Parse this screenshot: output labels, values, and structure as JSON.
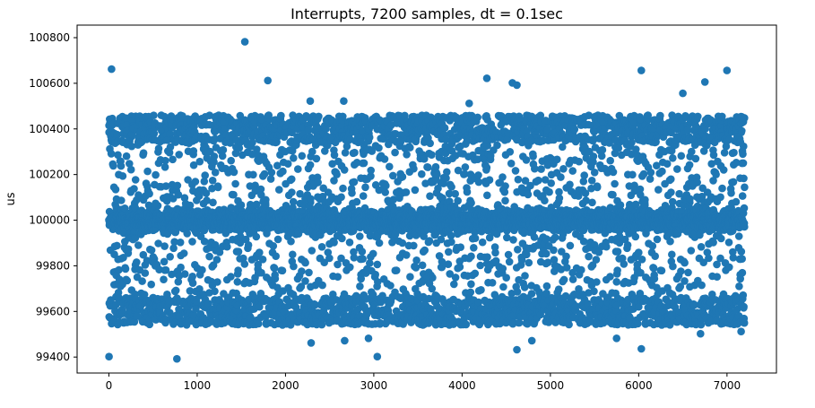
{
  "chart_data": {
    "type": "scatter",
    "title": "Interrupts, 7200 samples, dt = 0.1sec",
    "xlabel": "",
    "ylabel": "us",
    "xlim": [
      -360,
      7560
    ],
    "ylim": [
      99330,
      100855
    ],
    "xticks": [
      0,
      1000,
      2000,
      3000,
      4000,
      5000,
      6000,
      7000
    ],
    "yticks": [
      99400,
      99600,
      99800,
      100000,
      100200,
      100400,
      100600,
      100800
    ],
    "grid": false,
    "marker_color": "#1f77b4",
    "series": [
      {
        "n_samples": 7200,
        "mean": 100000,
        "band_low": 99540,
        "band_high": 100460,
        "outliers": [
          [
            1,
            99402
          ],
          [
            30,
            100662
          ],
          [
            770,
            99392
          ],
          [
            1540,
            100782
          ],
          [
            1800,
            100612
          ],
          [
            2290,
            99462
          ],
          [
            2670,
            99472
          ],
          [
            2940,
            99482
          ],
          [
            3040,
            99402
          ],
          [
            4280,
            100622
          ],
          [
            4570,
            100602
          ],
          [
            4620,
            100592
          ],
          [
            4620,
            99432
          ],
          [
            5750,
            99482
          ],
          [
            6030,
            100656
          ],
          [
            6030,
            99436
          ],
          [
            6500,
            100556
          ],
          [
            6700,
            99502
          ],
          [
            6750,
            100606
          ],
          [
            7000,
            100656
          ],
          [
            4790,
            99472
          ],
          [
            7160,
            99512
          ],
          [
            2280,
            100522
          ],
          [
            2660,
            100522
          ],
          [
            4080,
            100512
          ]
        ]
      }
    ]
  }
}
